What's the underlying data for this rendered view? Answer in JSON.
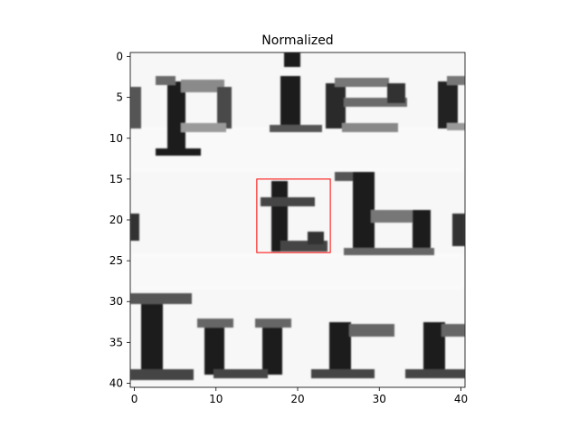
{
  "chart_data": {
    "type": "heatmap",
    "title": "Normalized",
    "xlabel": "",
    "ylabel": "",
    "colormap": "gray",
    "xlim": [
      -0.5,
      40.5
    ],
    "ylim": [
      40.5,
      -0.5
    ],
    "x_ticks": [
      0,
      10,
      20,
      30,
      40
    ],
    "y_ticks": [
      0,
      5,
      10,
      15,
      20,
      25,
      30,
      35,
      40
    ],
    "grid": false,
    "legend": "none",
    "image_content": "grayscale text crop reading 'pie' / 'th' / 'lurr'",
    "highlight_box": {
      "x0": 15,
      "x1": 24,
      "y0": 15,
      "y1": 24,
      "color": "#ff0000"
    }
  }
}
